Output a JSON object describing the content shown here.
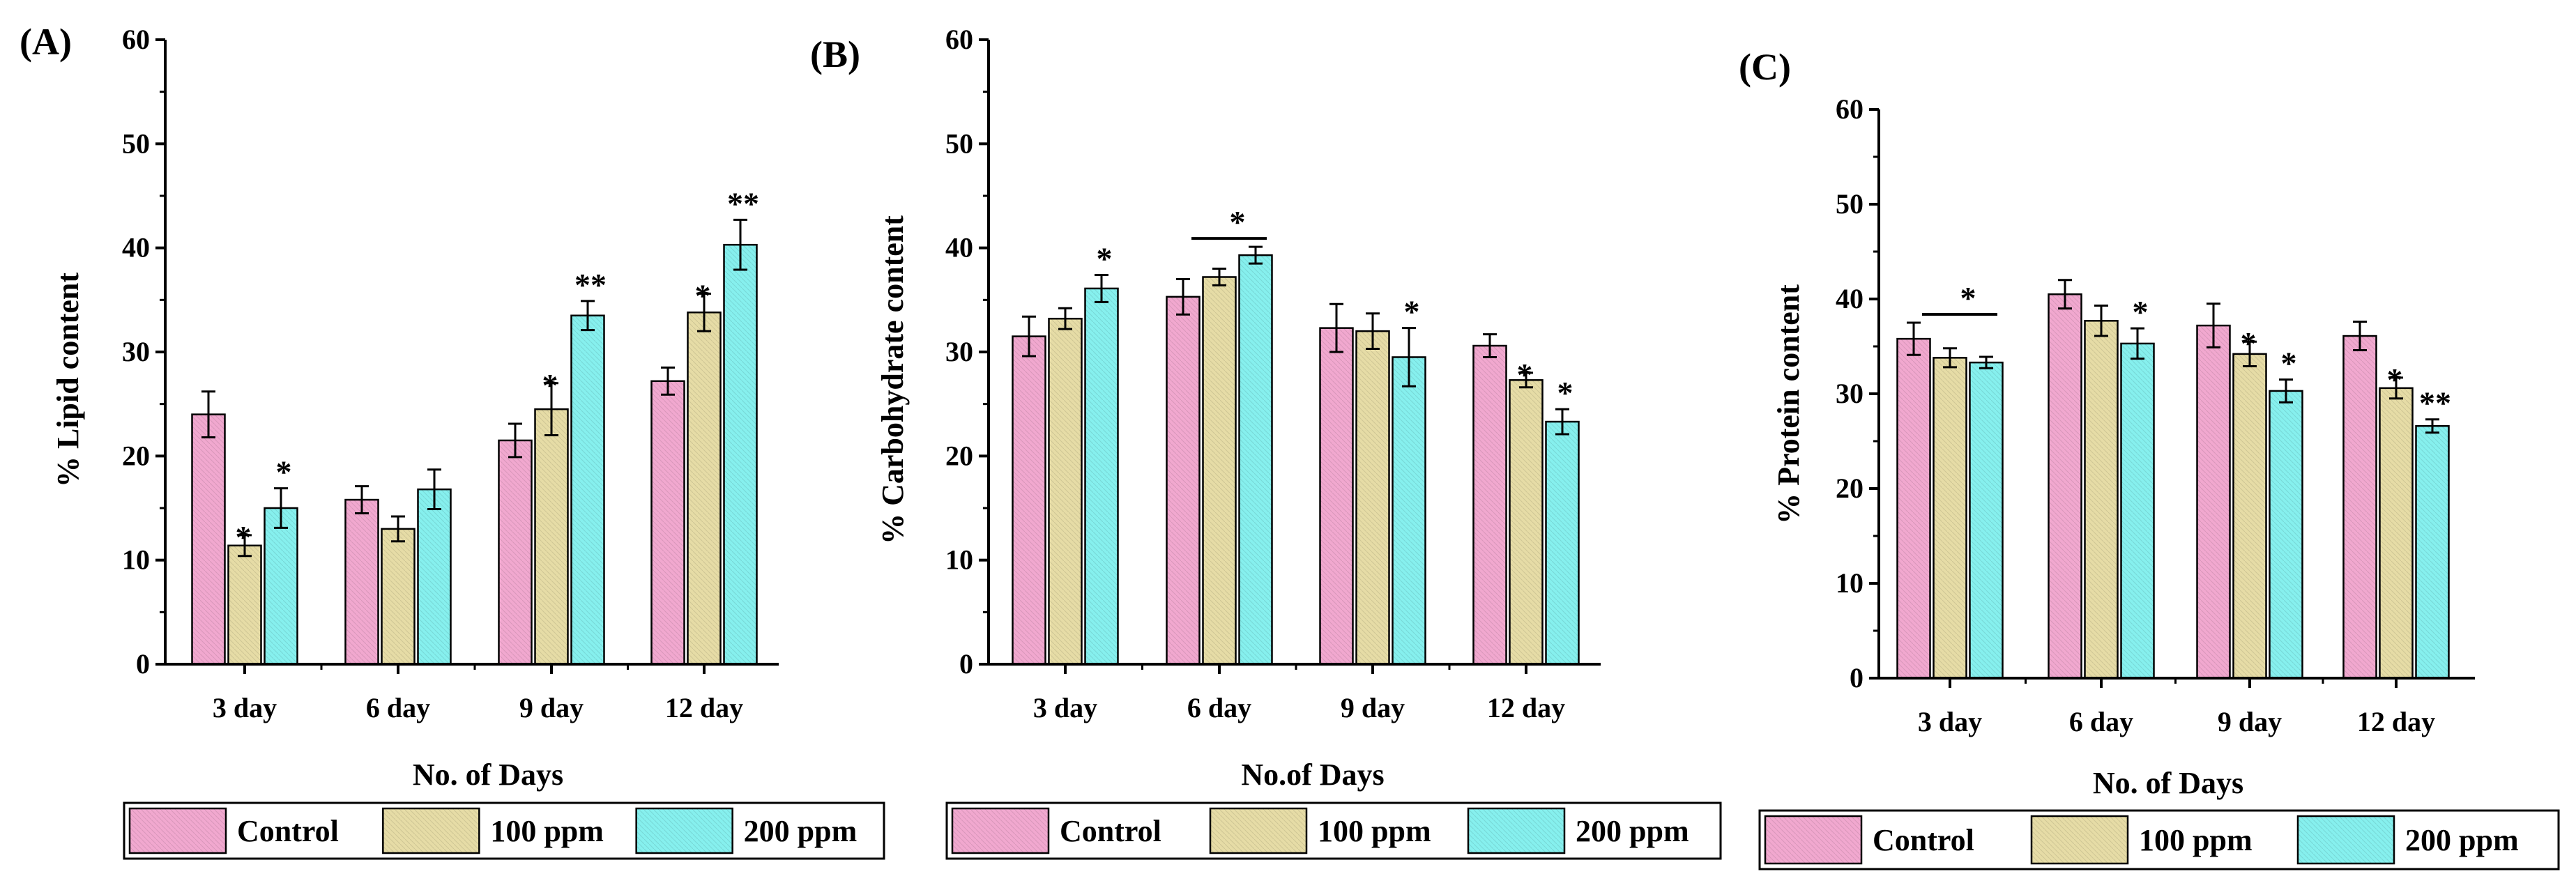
{
  "figure": {
    "legend": [
      {
        "label": "Control",
        "color": "#f1a8cf"
      },
      {
        "label": "100 ppm",
        "color": "#e6dca6"
      },
      {
        "label": "200 ppm",
        "color": "#86f0ee"
      }
    ]
  },
  "chart_data": [
    {
      "type": "bar",
      "panel": "(A)",
      "xlabel": "No. of Days",
      "ylabel": "% Lipid content",
      "ylim": [
        0,
        60
      ],
      "yticks": [
        "0",
        "10",
        "20",
        "30",
        "40",
        "50",
        "60"
      ],
      "categories": [
        "3 day",
        "6 day",
        "9 day",
        "12 day"
      ],
      "series": [
        {
          "name": "Control",
          "values": [
            24.0,
            15.8,
            21.5,
            27.2
          ],
          "errors": [
            2.2,
            1.3,
            1.6,
            1.3
          ],
          "marks": [
            "",
            "",
            "",
            ""
          ]
        },
        {
          "name": "100 ppm",
          "values": [
            11.4,
            13.0,
            24.5,
            33.8
          ],
          "errors": [
            1.0,
            1.2,
            2.5,
            1.8
          ],
          "marks": [
            "*",
            "",
            "*",
            "*"
          ]
        },
        {
          "name": "200 ppm",
          "values": [
            15.0,
            16.8,
            33.5,
            40.3
          ],
          "errors": [
            1.9,
            1.9,
            1.4,
            2.4
          ],
          "marks": [
            "*",
            "",
            "**",
            "**"
          ]
        }
      ]
    },
    {
      "type": "bar",
      "panel": "(B)",
      "xlabel": "No.of Days",
      "ylabel": "% Carbohydrate content",
      "ylim": [
        0,
        60
      ],
      "yticks": [
        "0",
        "10",
        "20",
        "30",
        "40",
        "50",
        "60"
      ],
      "categories": [
        "3 day",
        "6 day",
        "9 day",
        "12 day"
      ],
      "series": [
        {
          "name": "Control",
          "values": [
            31.5,
            35.3,
            32.3,
            30.6
          ],
          "errors": [
            1.9,
            1.7,
            2.3,
            1.1
          ],
          "marks": [
            "",
            "",
            "",
            ""
          ]
        },
        {
          "name": "100 ppm",
          "values": [
            33.2,
            37.2,
            32.0,
            27.3
          ],
          "errors": [
            1.0,
            0.8,
            1.7,
            0.7
          ],
          "marks": [
            "",
            "",
            "",
            "*"
          ]
        },
        {
          "name": "200 ppm",
          "values": [
            36.1,
            39.3,
            29.5,
            23.3
          ],
          "errors": [
            1.3,
            0.8,
            2.8,
            1.2
          ],
          "marks": [
            "*",
            "",
            "*",
            "*"
          ]
        }
      ],
      "group_marks": [
        {
          "category": "6 day",
          "label": "*"
        }
      ]
    },
    {
      "type": "bar",
      "panel": "(C)",
      "xlabel": "No. of Days",
      "ylabel": "% Protein content",
      "ylim": [
        0,
        60
      ],
      "yticks": [
        "0",
        "10",
        "20",
        "30",
        "40",
        "50",
        "60"
      ],
      "categories": [
        "3 day",
        "6 day",
        "9 day",
        "12 day"
      ],
      "series": [
        {
          "name": "Control",
          "values": [
            35.8,
            40.5,
            37.2,
            36.1
          ],
          "errors": [
            1.7,
            1.5,
            2.3,
            1.5
          ],
          "marks": [
            "",
            "",
            "",
            ""
          ]
        },
        {
          "name": "100 ppm",
          "values": [
            33.8,
            37.7,
            34.2,
            30.6
          ],
          "errors": [
            1.0,
            1.6,
            1.3,
            1.1
          ],
          "marks": [
            "",
            "",
            "*",
            "*"
          ]
        },
        {
          "name": "200 ppm",
          "values": [
            33.3,
            35.3,
            30.3,
            26.6
          ],
          "errors": [
            0.6,
            1.6,
            1.2,
            0.7
          ],
          "marks": [
            "",
            "*",
            "*",
            "**"
          ]
        }
      ],
      "group_marks": [
        {
          "category": "3 day",
          "label": "*"
        }
      ]
    }
  ]
}
